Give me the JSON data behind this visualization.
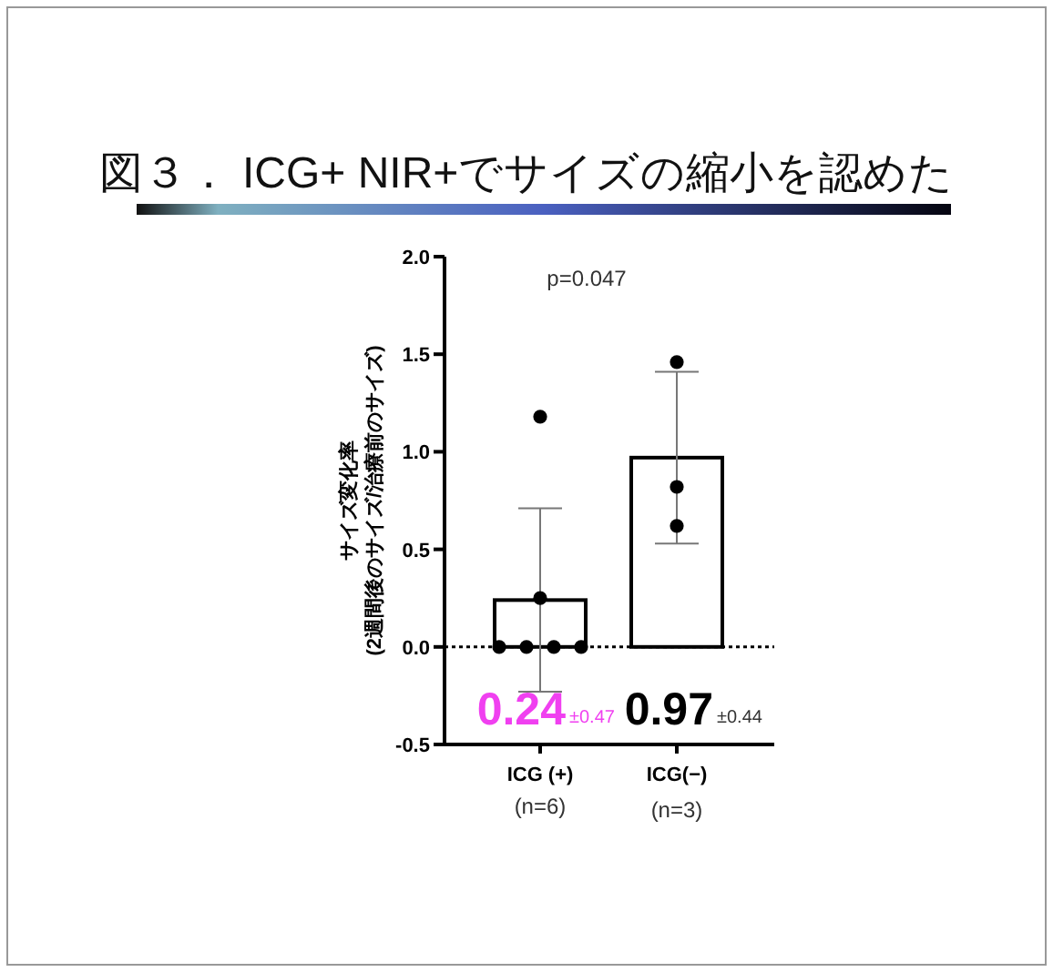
{
  "chart_data": {
    "type": "bar",
    "title": "図３． ICG+ NIR+でサイズの縮小を認めた",
    "ylabel": "サイズ変化率\n(2週間後のサイズ/治療前のサイズ)",
    "categories": [
      "ICG (+)",
      "ICG(−)"
    ],
    "series": [
      {
        "type": "bar",
        "color": "#ffffff",
        "values": [
          0.24,
          0.97
        ],
        "errors": [
          0.47,
          0.44
        ],
        "value_labels": [
          "0.24",
          "0.97"
        ]
      },
      {
        "type": "scatter",
        "color": "#000000",
        "x": [
          "ICG (+)",
          "ICG (+)",
          "ICG (+)",
          "ICG (+)",
          "ICG (+)",
          "ICG (+)",
          "ICG(−)",
          "ICG(−)",
          "ICG(−)"
        ],
        "values": [
          1.18,
          0.25,
          0,
          0,
          0,
          0,
          1.46,
          0.82,
          0.62
        ]
      }
    ],
    "ylim": [
      -0.5,
      2.0
    ],
    "yticks": [
      {
        "value": -0.5,
        "label": "-0.5"
      },
      {
        "value": 0,
        "label": "0.0"
      },
      {
        "value": 0.5,
        "label": "0.5"
      },
      {
        "value": 1.0,
        "label": "1.0"
      },
      {
        "value": 1.5,
        "label": "1.5"
      },
      {
        "value": 2.0,
        "label": "2.0"
      }
    ],
    "ref_lines": [
      {
        "axis": "y",
        "value": 0,
        "line_style": "dotted",
        "color": "#000000"
      }
    ],
    "annotations": [
      {
        "text": "p=0.047"
      },
      "±0.47",
      "±0.44",
      "(n=6)",
      "(n=3)"
    ],
    "grid": false,
    "marker": "circle"
  }
}
